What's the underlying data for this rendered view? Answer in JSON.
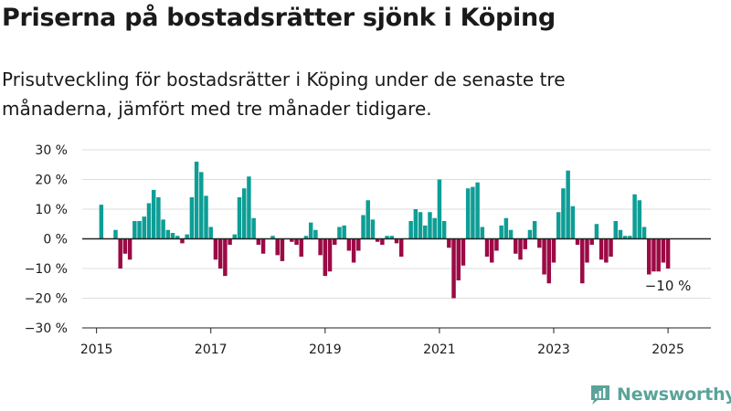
{
  "header": {
    "title": "Priserna på bostadsrätter sjönk i Köping",
    "subtitle": "Prisutveckling för bostadsrätter i Köping under de senaste tre månaderna, jämfört med tre månader tidigare."
  },
  "brand": {
    "name": "Newsworthy",
    "icon": "newsworthy-logo-icon",
    "color": "#5aa39a"
  },
  "colors": {
    "positive": "#0d9e96",
    "negative": "#9b0a45",
    "grid": "#dddddd",
    "axis": "#222222"
  },
  "chart_data": {
    "type": "bar",
    "title": "",
    "xlabel": "",
    "ylabel": "",
    "ylim": [
      -30,
      30
    ],
    "y_ticks": [
      30,
      20,
      10,
      0,
      -10,
      -20,
      -30
    ],
    "y_tick_labels": [
      "30 %",
      "20 %",
      "10 %",
      "0 %",
      "−10 %",
      "−20 %",
      "−30 %"
    ],
    "x_ticks": [
      "2015",
      "2017",
      "2019",
      "2021",
      "2023",
      "2025"
    ],
    "x_range": [
      "2014-10",
      "2025-10"
    ],
    "grid": true,
    "legend": "none",
    "annotation": {
      "text": "−10 %",
      "date": "2025-01",
      "value": -10
    },
    "series": [
      {
        "dates": [
          "2015-02",
          "2015-03",
          "2015-04",
          "2015-05",
          "2015-06",
          "2015-07",
          "2015-08",
          "2015-09",
          "2015-10",
          "2015-11",
          "2015-12",
          "2016-01",
          "2016-02",
          "2016-03",
          "2016-04",
          "2016-05",
          "2016-06",
          "2016-07",
          "2016-08",
          "2016-09",
          "2016-10",
          "2016-11",
          "2016-12",
          "2017-01",
          "2017-02",
          "2017-03",
          "2017-04",
          "2017-05",
          "2017-06",
          "2017-07",
          "2017-08",
          "2017-09",
          "2017-10",
          "2017-11",
          "2017-12",
          "2018-01",
          "2018-02",
          "2018-03",
          "2018-04",
          "2018-05",
          "2018-06",
          "2018-07",
          "2018-08",
          "2018-09",
          "2018-10",
          "2018-11",
          "2018-12",
          "2019-01",
          "2019-02",
          "2019-03",
          "2019-04",
          "2019-05",
          "2019-06",
          "2019-07",
          "2019-08",
          "2019-09",
          "2019-10",
          "2019-11",
          "2019-12",
          "2020-01",
          "2020-02",
          "2020-03",
          "2020-04",
          "2020-05",
          "2020-06",
          "2020-07",
          "2020-08",
          "2020-09",
          "2020-10",
          "2020-11",
          "2020-12",
          "2021-01",
          "2021-02",
          "2021-03",
          "2021-04",
          "2021-05",
          "2021-06",
          "2021-07",
          "2021-08",
          "2021-09",
          "2021-10",
          "2021-11",
          "2021-12",
          "2022-01",
          "2022-02",
          "2022-03",
          "2022-04",
          "2022-05",
          "2022-06",
          "2022-07",
          "2022-08",
          "2022-09",
          "2022-10",
          "2022-11",
          "2022-12",
          "2023-01",
          "2023-02",
          "2023-03",
          "2023-04",
          "2023-05",
          "2023-06",
          "2023-07",
          "2023-08",
          "2023-09",
          "2023-10",
          "2023-11",
          "2023-12",
          "2024-01",
          "2024-02",
          "2024-03",
          "2024-04",
          "2024-05",
          "2024-06",
          "2024-07",
          "2024-08",
          "2024-09",
          "2024-10",
          "2024-11",
          "2024-12",
          "2025-01"
        ],
        "values": [
          11.5,
          0,
          0,
          3,
          -10,
          -5,
          -7,
          6,
          6,
          7.5,
          12,
          16.5,
          14,
          6.5,
          3,
          2,
          1,
          -1.5,
          1.5,
          14,
          26,
          22.5,
          14.5,
          4,
          -7,
          -10,
          -12.5,
          -2,
          1.5,
          14,
          17,
          21,
          7,
          -2,
          -5,
          0,
          1,
          -5.5,
          -7.5,
          0,
          -1,
          -2,
          -6,
          1,
          5.5,
          3,
          -5.5,
          -12.5,
          -11,
          -2,
          4,
          4.5,
          -4,
          -8,
          -4,
          8,
          13,
          6.5,
          -1,
          -2,
          1,
          1,
          -1.5,
          -6,
          0,
          6,
          10,
          9,
          4.5,
          9,
          7,
          20,
          6,
          -3,
          -20,
          -14,
          -9,
          17,
          17.5,
          19,
          4,
          -6,
          -8,
          -4,
          4.5,
          7,
          3,
          -5,
          -7,
          -3.5,
          3,
          6,
          -3,
          -12,
          -15,
          -8,
          9,
          17,
          23,
          11,
          -2,
          -15,
          -8,
          -2,
          5,
          -7,
          -8,
          -6,
          6,
          3,
          1,
          1,
          15,
          13,
          4,
          -12,
          -11,
          -11,
          -8,
          -10
        ]
      }
    ]
  }
}
